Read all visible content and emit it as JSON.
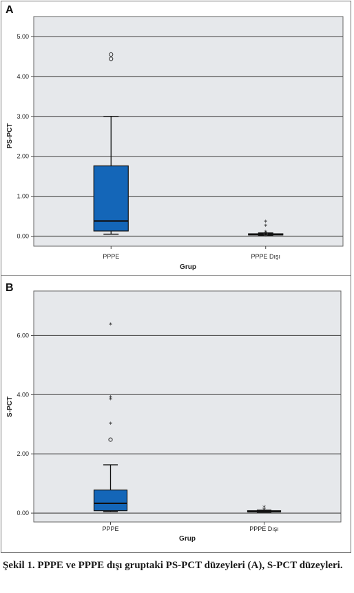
{
  "chart_data": [
    {
      "type": "boxplot",
      "panel_label": "A",
      "xlabel": "Grup",
      "ylabel": "PS-PCT",
      "ylim": [
        -0.25,
        5.5
      ],
      "yticks": [
        "0.00",
        "1.00",
        "2.00",
        "3.00",
        "4.00",
        "5.00"
      ],
      "ytick_values": [
        0,
        1,
        2,
        3,
        4,
        5
      ],
      "grid": "horizontal",
      "categories": [
        "PPPE",
        "PPPE Dışı"
      ],
      "boxes": [
        {
          "category": "PPPE",
          "whisker_low": 0.05,
          "q1": 0.13,
          "median": 0.38,
          "q3": 1.76,
          "whisker_high": 3.0,
          "outliers": [
            4.44,
            4.55
          ],
          "extremes": []
        },
        {
          "category": "PPPE Dışı",
          "whisker_low": 0.02,
          "q1": 0.03,
          "median": 0.04,
          "q3": 0.06,
          "whisker_high": 0.08,
          "outliers": [
            0.05,
            0.06
          ],
          "extremes": [
            0.1,
            0.26,
            0.36
          ]
        }
      ],
      "colors": {
        "box": "#1466b8",
        "plot_bg": "#e6e8eb",
        "grid": "#555555"
      }
    },
    {
      "type": "boxplot",
      "panel_label": "B",
      "xlabel": "Grup",
      "ylabel": "S-PCT",
      "ylim": [
        -0.3,
        7.5
      ],
      "yticks": [
        "0.00",
        "2.00",
        "4.00",
        "6.00"
      ],
      "ytick_values": [
        0,
        2,
        4,
        6
      ],
      "grid": "horizontal",
      "categories": [
        "PPPE",
        "PPPE Dışı"
      ],
      "boxes": [
        {
          "category": "PPPE",
          "whisker_low": 0.05,
          "q1": 0.08,
          "median": 0.33,
          "q3": 0.78,
          "whisker_high": 1.63,
          "outliers": [
            2.48
          ],
          "extremes": [
            3.02,
            3.85,
            3.92,
            6.37
          ]
        },
        {
          "category": "PPPE Dışı",
          "whisker_low": 0.03,
          "q1": 0.04,
          "median": 0.05,
          "q3": 0.08,
          "whisker_high": 0.1,
          "outliers": [],
          "extremes": [
            0.12,
            0.2
          ]
        }
      ],
      "colors": {
        "box": "#1466b8",
        "plot_bg": "#e6e8eb",
        "grid": "#555555"
      }
    }
  ],
  "caption": "Şekil 1. PPPE ve PPPE dışı gruptaki PS-PCT düzeyleri (A), S-PCT düzeyleri."
}
